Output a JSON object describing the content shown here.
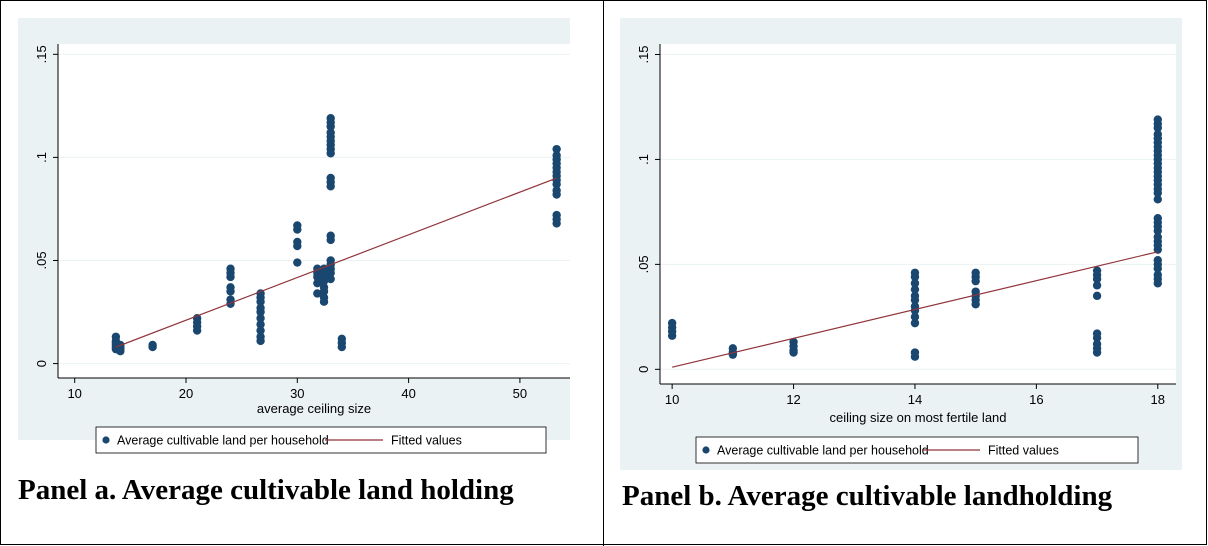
{
  "chart_data": [
    {
      "type": "scatter",
      "panel_caption": "Panel a. Average cultivable land holding",
      "xlabel": "average ceiling size",
      "ylabel": "",
      "xlim": [
        8.5,
        54.5
      ],
      "ylim": [
        -0.007,
        0.155
      ],
      "xticks": [
        10,
        20,
        30,
        40,
        50
      ],
      "xtick_labels": [
        "10",
        "20",
        "30",
        "40",
        "50"
      ],
      "yticks": [
        0,
        0.05,
        0.1,
        0.15
      ],
      "ytick_labels": [
        "0",
        ".05",
        ".1",
        ".15"
      ],
      "grid": "horizontal",
      "legend_position": "bottom",
      "series": [
        {
          "name": "Average cultivable land per household",
          "kind": "scatter",
          "color": "#1a476f",
          "points": [
            [
              13.7,
              0.013
            ],
            [
              13.7,
              0.011
            ],
            [
              13.7,
              0.01
            ],
            [
              13.7,
              0.009
            ],
            [
              13.7,
              0.008
            ],
            [
              13.7,
              0.007
            ],
            [
              14.1,
              0.009
            ],
            [
              14.1,
              0.008
            ],
            [
              14.1,
              0.007
            ],
            [
              14.1,
              0.006
            ],
            [
              17.0,
              0.009
            ],
            [
              17.0,
              0.008
            ],
            [
              21.0,
              0.022
            ],
            [
              21.0,
              0.02
            ],
            [
              21.0,
              0.018
            ],
            [
              21.0,
              0.016
            ],
            [
              24.0,
              0.046
            ],
            [
              24.0,
              0.044
            ],
            [
              24.0,
              0.042
            ],
            [
              24.0,
              0.037
            ],
            [
              24.0,
              0.035
            ],
            [
              24.0,
              0.031
            ],
            [
              24.0,
              0.029
            ],
            [
              26.7,
              0.034
            ],
            [
              26.7,
              0.032
            ],
            [
              26.7,
              0.03
            ],
            [
              26.7,
              0.027
            ],
            [
              26.7,
              0.025
            ],
            [
              26.7,
              0.022
            ],
            [
              26.7,
              0.019
            ],
            [
              26.7,
              0.016
            ],
            [
              26.7,
              0.013
            ],
            [
              26.7,
              0.011
            ],
            [
              30.0,
              0.067
            ],
            [
              30.0,
              0.065
            ],
            [
              30.0,
              0.059
            ],
            [
              30.0,
              0.057
            ],
            [
              30.0,
              0.049
            ],
            [
              31.8,
              0.046
            ],
            [
              31.8,
              0.044
            ],
            [
              31.8,
              0.042
            ],
            [
              31.8,
              0.039
            ],
            [
              31.8,
              0.034
            ],
            [
              32.4,
              0.046
            ],
            [
              32.4,
              0.043
            ],
            [
              32.4,
              0.04
            ],
            [
              32.4,
              0.037
            ],
            [
              32.4,
              0.035
            ],
            [
              32.4,
              0.032
            ],
            [
              32.4,
              0.03
            ],
            [
              33.0,
              0.119
            ],
            [
              33.0,
              0.117
            ],
            [
              33.0,
              0.115
            ],
            [
              33.0,
              0.112
            ],
            [
              33.0,
              0.11
            ],
            [
              33.0,
              0.108
            ],
            [
              33.0,
              0.106
            ],
            [
              33.0,
              0.104
            ],
            [
              33.0,
              0.102
            ],
            [
              33.0,
              0.09
            ],
            [
              33.0,
              0.088
            ],
            [
              33.0,
              0.086
            ],
            [
              33.0,
              0.062
            ],
            [
              33.0,
              0.06
            ],
            [
              33.0,
              0.05
            ],
            [
              33.0,
              0.048
            ],
            [
              33.0,
              0.046
            ],
            [
              33.0,
              0.044
            ],
            [
              33.0,
              0.041
            ],
            [
              34.0,
              0.012
            ],
            [
              34.0,
              0.01
            ],
            [
              34.0,
              0.008
            ],
            [
              53.3,
              0.104
            ],
            [
              53.3,
              0.101
            ],
            [
              53.3,
              0.099
            ],
            [
              53.3,
              0.097
            ],
            [
              53.3,
              0.095
            ],
            [
              53.3,
              0.093
            ],
            [
              53.3,
              0.091
            ],
            [
              53.3,
              0.089
            ],
            [
              53.3,
              0.087
            ],
            [
              53.3,
              0.084
            ],
            [
              53.3,
              0.082
            ],
            [
              53.3,
              0.072
            ],
            [
              53.3,
              0.07
            ],
            [
              53.3,
              0.068
            ]
          ]
        },
        {
          "name": "Fitted values",
          "kind": "line",
          "color": "#90353b",
          "points": [
            [
              13.7,
              0.008
            ],
            [
              53.3,
              0.09
            ]
          ]
        }
      ]
    },
    {
      "type": "scatter",
      "panel_caption": "Panel b. Average cultivable landholding",
      "xlabel": "ceiling size on most fertile land",
      "ylabel": "",
      "xlim": [
        9.8,
        18.3
      ],
      "ylim": [
        -0.007,
        0.155
      ],
      "xticks": [
        10,
        12,
        14,
        16,
        18
      ],
      "xtick_labels": [
        "10",
        "12",
        "14",
        "16",
        "18"
      ],
      "yticks": [
        0,
        0.05,
        0.1,
        0.15
      ],
      "ytick_labels": [
        "0",
        ".05",
        ".1",
        ".15"
      ],
      "grid": "horizontal",
      "legend_position": "bottom",
      "series": [
        {
          "name": "Average cultivable land per household",
          "kind": "scatter",
          "color": "#1a476f",
          "points": [
            [
              10,
              0.022
            ],
            [
              10,
              0.02
            ],
            [
              10,
              0.018
            ],
            [
              10,
              0.016
            ],
            [
              11,
              0.01
            ],
            [
              11,
              0.008
            ],
            [
              11,
              0.007
            ],
            [
              12,
              0.013
            ],
            [
              12,
              0.011
            ],
            [
              12,
              0.009
            ],
            [
              12,
              0.008
            ],
            [
              14,
              0.046
            ],
            [
              14,
              0.044
            ],
            [
              14,
              0.041
            ],
            [
              14,
              0.038
            ],
            [
              14,
              0.035
            ],
            [
              14,
              0.033
            ],
            [
              14,
              0.03
            ],
            [
              14,
              0.028
            ],
            [
              14,
              0.025
            ],
            [
              14,
              0.022
            ],
            [
              14,
              0.008
            ],
            [
              14,
              0.006
            ],
            [
              15,
              0.046
            ],
            [
              15,
              0.044
            ],
            [
              15,
              0.042
            ],
            [
              15,
              0.037
            ],
            [
              15,
              0.035
            ],
            [
              15,
              0.033
            ],
            [
              15,
              0.031
            ],
            [
              17,
              0.047
            ],
            [
              17,
              0.045
            ],
            [
              17,
              0.043
            ],
            [
              17,
              0.04
            ],
            [
              17,
              0.035
            ],
            [
              17,
              0.017
            ],
            [
              17,
              0.015
            ],
            [
              17,
              0.012
            ],
            [
              17,
              0.01
            ],
            [
              17,
              0.008
            ],
            [
              18,
              0.119
            ],
            [
              18,
              0.117
            ],
            [
              18,
              0.115
            ],
            [
              18,
              0.112
            ],
            [
              18,
              0.11
            ],
            [
              18,
              0.108
            ],
            [
              18,
              0.106
            ],
            [
              18,
              0.104
            ],
            [
              18,
              0.102
            ],
            [
              18,
              0.1
            ],
            [
              18,
              0.098
            ],
            [
              18,
              0.096
            ],
            [
              18,
              0.094
            ],
            [
              18,
              0.092
            ],
            [
              18,
              0.09
            ],
            [
              18,
              0.088
            ],
            [
              18,
              0.086
            ],
            [
              18,
              0.084
            ],
            [
              18,
              0.081
            ],
            [
              18,
              0.072
            ],
            [
              18,
              0.07
            ],
            [
              18,
              0.068
            ],
            [
              18,
              0.066
            ],
            [
              18,
              0.063
            ],
            [
              18,
              0.061
            ],
            [
              18,
              0.059
            ],
            [
              18,
              0.057
            ],
            [
              18,
              0.052
            ],
            [
              18,
              0.05
            ],
            [
              18,
              0.048
            ],
            [
              18,
              0.045
            ],
            [
              18,
              0.043
            ],
            [
              18,
              0.041
            ]
          ]
        },
        {
          "name": "Fitted values",
          "kind": "line",
          "color": "#90353b",
          "points": [
            [
              10,
              0.001
            ],
            [
              18,
              0.056
            ]
          ]
        }
      ]
    }
  ]
}
